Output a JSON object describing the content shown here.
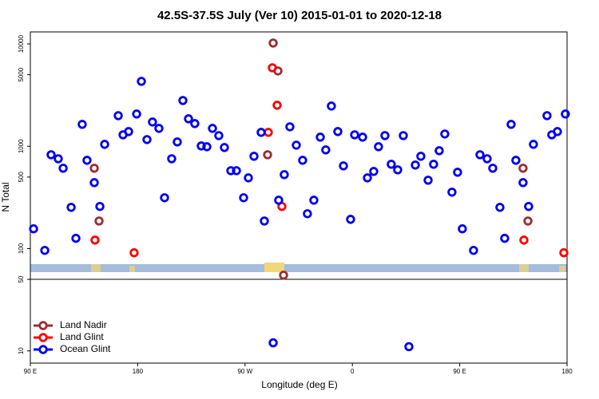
{
  "chart_data": {
    "type": "scatter",
    "title": "42.5S-37.5S July (Ver 10)   2015-01-01 to 2020-12-18",
    "x_label": "Longitude (deg E)",
    "y_label": "N Total",
    "xlim": [
      90,
      540
    ],
    "ylim": [
      7.6,
      13100
    ],
    "ylog": true,
    "legend": "bottom-left",
    "xticks": [
      {
        "value": 90,
        "label": "90 E"
      },
      180,
      {
        "value": 270,
        "label": "90 W"
      },
      {
        "value": 360,
        "label": "0"
      },
      {
        "value": 450,
        "label": "90 E"
      },
      {
        "value": 540,
        "label": "180"
      }
    ],
    "yticks": [
      10,
      50,
      100,
      500,
      1000,
      5000,
      10000
    ],
    "series": [
      {
        "name": "Land Nadir",
        "color": "#9b2d30",
        "x": [
          143.6,
          147.6,
          293.6,
          297.6,
          288.9,
          302.3,
          503.1,
          507.2
        ],
        "values": [
          610,
          186,
          10200,
          5445,
          826,
          55,
          610,
          186
        ]
      },
      {
        "name": "Land Glint",
        "color": "#ff0000",
        "x": [
          144.2,
          177.0,
          292.9,
          296.9,
          289.5,
          300.9,
          503.8,
          537.3
        ],
        "values": [
          121,
          91,
          5848,
          2516,
          1367,
          258,
          121,
          91
        ]
      },
      {
        "name": "Ocean Glint",
        "color": "#0000ee",
        "x": [
          92.7,
          102.1,
          107.4,
          113.4,
          117.5,
          124.2,
          128.2,
          133.5,
          137.5,
          143.6,
          148.3,
          152.3,
          163.7,
          167.7,
          172.4,
          179.1,
          183.1,
          187.8,
          192.4,
          197.8,
          202.5,
          208.5,
          213.2,
          217.9,
          222.6,
          227.9,
          233.3,
          238.0,
          242.7,
          248.0,
          252.7,
          258.1,
          262.8,
          268.8,
          272.8,
          277.5,
          283.5,
          286.2,
          293.6,
          298.2,
          302.9,
          307.6,
          313.0,
          318.3,
          322.3,
          327.7,
          333.1,
          337.7,
          342.4,
          347.8,
          352.5,
          358.5,
          361.9,
          368.6,
          372.6,
          377.9,
          381.9,
          387.3,
          392.6,
          398.0,
          402.7,
          407.4,
          412.8,
          417.4,
          423.5,
          428.1,
          432.8,
          437.5,
          443.5,
          448.2,
          452.2,
          461.6,
          467.0,
          473.0,
          477.7,
          483.7,
          487.7,
          493.1,
          497.1,
          503.1,
          507.8,
          511.8,
          523.2,
          527.2,
          531.9,
          538.6
        ],
        "values": [
          156,
          96,
          826,
          755,
          610,
          253,
          126,
          1636,
          729,
          441,
          258,
          1044,
          1991,
          1294,
          1391,
          2065,
          4306,
          1162,
          1726,
          1495,
          314,
          755,
          1102,
          2800,
          1854,
          1665,
          1007,
          989,
          1495,
          1271,
          972,
          577,
          577,
          314,
          491,
          798,
          1367,
          186,
          12,
          297,
          528,
          1549,
          1025,
          729,
          219,
          297,
          1227,
          921,
          2471,
          1391,
          643,
          193,
          1294,
          1227,
          491,
          567,
          989,
          1271,
          667,
          588,
          1271,
          11,
          655,
          798,
          466,
          667,
          904,
          1318,
          356,
          557,
          156,
          96,
          826,
          755,
          610,
          253,
          126,
          1636,
          729,
          441,
          258,
          1044,
          1991,
          1294,
          1391,
          2065
        ]
      }
    ]
  }
}
